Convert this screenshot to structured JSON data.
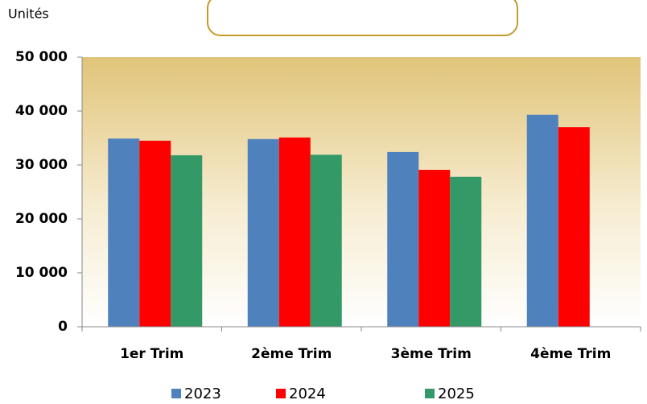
{
  "chart_data": {
    "type": "bar",
    "y_label": "Unités",
    "categories": [
      "1er Trim",
      "2ème Trim",
      "3ème Trim",
      "4ème Trim"
    ],
    "series": [
      {
        "name": "2023",
        "color": "#4f81bd",
        "values": [
          34900,
          34800,
          32400,
          39300
        ]
      },
      {
        "name": "2024",
        "color": "#ff0000",
        "values": [
          34500,
          35100,
          29100,
          37000
        ]
      },
      {
        "name": "2025",
        "color": "#339966",
        "values": [
          31800,
          31900,
          27800,
          null
        ]
      }
    ],
    "ylim": [
      0,
      50000
    ],
    "yticks": [
      {
        "value": 0,
        "label": "0"
      },
      {
        "value": 10000,
        "label": "10 000"
      },
      {
        "value": 20000,
        "label": "20 000"
      },
      {
        "value": 30000,
        "label": "30 000"
      },
      {
        "value": 40000,
        "label": "40 000"
      },
      {
        "value": 50000,
        "label": "50 000"
      }
    ],
    "legend": "bottom"
  }
}
